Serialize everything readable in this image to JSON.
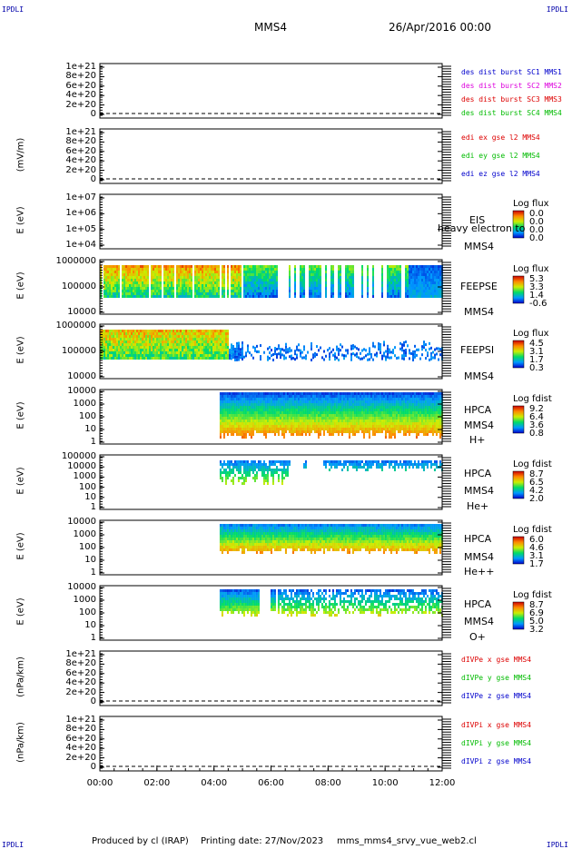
{
  "header": {
    "corner_left_top": "IPDLI",
    "corner_right_top": "IPDLI",
    "corner_left_bottom": "IPDLI",
    "corner_right_bottom": "IPDLI",
    "spacecraft": "MMS4",
    "date": "26/Apr/2016 00:00"
  },
  "footer": {
    "produced_by": "Produced by cl (IRAP)",
    "printing_date": "Printing date: 27/Nov/2023",
    "filename": "mms_mms4_srvy_vue_web2.cl"
  },
  "x_axis": {
    "ticks": [
      "00:00",
      "02:00",
      "04:00",
      "06:00",
      "08:00",
      "10:00",
      "12:00"
    ],
    "range_hours": [
      0,
      12
    ]
  },
  "colors": {
    "blue": "#0000cc",
    "magenta": "#dd00dd",
    "red": "#dd0000",
    "green": "#00bb00"
  },
  "panels": [
    {
      "id": "dist",
      "ylabel": "",
      "yticks": [
        "1e+21",
        "8e+20",
        "6e+20",
        "4e+20",
        "2e+20",
        "0"
      ],
      "legend": [
        {
          "text": "des dist burst SC1 MMS1",
          "color": "#0000cc"
        },
        {
          "text": "des dist burst SC2 MMS2",
          "color": "#dd00dd"
        },
        {
          "text": "des dist burst SC3 MMS3",
          "color": "#dd0000"
        },
        {
          "text": "des dist burst SC4 MMS4",
          "color": "#00bb00"
        }
      ]
    },
    {
      "id": "edi",
      "ylabel": "(mV/m)",
      "yticks": [
        "1e+21",
        "8e+20",
        "6e+20",
        "4e+20",
        "2e+20",
        "0"
      ],
      "legend": [
        {
          "text": "edi ex gse l2 MMS4",
          "color": "#dd0000"
        },
        {
          "text": "edi ey gse l2 MMS4",
          "color": "#00bb00"
        },
        {
          "text": "edi ez gse l2 MMS4",
          "color": "#0000cc"
        }
      ]
    },
    {
      "id": "eis",
      "ylabel": "E (eV)",
      "yticks": [
        "1e+07",
        "1e+06",
        "1e+05",
        "1e+04"
      ],
      "labels": [
        "EIS",
        "heavy electron to",
        "MMS4"
      ],
      "cb_title": "Log flux",
      "cb_values": [
        "0.0",
        "0.0",
        "0.0",
        "0.0"
      ]
    },
    {
      "id": "feepse",
      "ylabel": "E (eV)",
      "yticks": [
        "1000000",
        "100000",
        "10000"
      ],
      "labels": [
        "FEEPSE",
        "MMS4"
      ],
      "cb_title": "Log flux",
      "cb_values": [
        "5.3",
        "3.3",
        "1.4",
        "-0.6"
      ]
    },
    {
      "id": "feepsi",
      "ylabel": "E (eV)",
      "yticks": [
        "1000000",
        "100000",
        "10000"
      ],
      "labels": [
        "FEEPSI",
        "MMS4"
      ],
      "cb_title": "Log flux",
      "cb_values": [
        "4.5",
        "3.1",
        "1.7",
        "0.3"
      ]
    },
    {
      "id": "hpca_h",
      "ylabel": "E (eV)",
      "yticks": [
        "10000",
        "1000",
        "100",
        "10",
        "1"
      ],
      "labels": [
        "HPCA",
        "MMS4",
        "H+"
      ],
      "cb_title": "Log fdist",
      "cb_values": [
        "9.2",
        "6.4",
        "3.6",
        "0.8"
      ]
    },
    {
      "id": "hpca_he",
      "ylabel": "E (eV)",
      "yticks": [
        "100000",
        "10000",
        "1000",
        "100",
        "10",
        "1"
      ],
      "labels": [
        "HPCA",
        "MMS4",
        "He+"
      ],
      "cb_title": "Log fdist",
      "cb_values": [
        "8.7",
        "6.5",
        "4.2",
        "2.0"
      ]
    },
    {
      "id": "hpca_hepp",
      "ylabel": "E (eV)",
      "yticks": [
        "10000",
        "1000",
        "100",
        "10",
        "1"
      ],
      "labels": [
        "HPCA",
        "MMS4",
        "He++"
      ],
      "cb_title": "Log fdist",
      "cb_values": [
        "6.0",
        "4.6",
        "3.1",
        "1.7"
      ]
    },
    {
      "id": "hpca_o",
      "ylabel": "E (eV)",
      "yticks": [
        "10000",
        "1000",
        "100",
        "10",
        "1"
      ],
      "labels": [
        "HPCA",
        "MMS4",
        "O+"
      ],
      "cb_title": "Log fdist",
      "cb_values": [
        "8.7",
        "6.9",
        "5.0",
        "3.2"
      ]
    },
    {
      "id": "divpe",
      "ylabel": "(nPa/km)",
      "yticks": [
        "1e+21",
        "8e+20",
        "6e+20",
        "4e+20",
        "2e+20",
        "0"
      ],
      "legend": [
        {
          "text": "dIVPe x gse MMS4",
          "color": "#dd0000"
        },
        {
          "text": "dIVPe y gse MMS4",
          "color": "#00bb00"
        },
        {
          "text": "dIVPe z gse MMS4",
          "color": "#0000cc"
        }
      ]
    },
    {
      "id": "divpi",
      "ylabel": "(nPa/km)",
      "yticks": [
        "1e+21",
        "8e+20",
        "6e+20",
        "4e+20",
        "2e+20",
        "0"
      ],
      "legend": [
        {
          "text": "dIVPi x gse MMS4",
          "color": "#dd0000"
        },
        {
          "text": "dIVPi y gse MMS4",
          "color": "#00bb00"
        },
        {
          "text": "dIVPi z gse MMS4",
          "color": "#0000cc"
        }
      ]
    }
  ],
  "chart_data": {
    "type": "heatmap",
    "x_units": "hours since 26/Apr/2016 00:00",
    "note_series": [
      {
        "panel": "feepse",
        "coverage_hours": [
          0,
          12
        ]
      },
      {
        "panel": "feepsi",
        "coverage_hours": [
          0,
          12
        ]
      },
      {
        "panel": "hpca_h",
        "coverage_hours": [
          4.2,
          12
        ]
      },
      {
        "panel": "hpca_he",
        "coverage_hours": [
          4.2,
          12
        ]
      },
      {
        "panel": "hpca_hepp",
        "coverage_hours": [
          4.2,
          12
        ]
      },
      {
        "panel": "hpca_o",
        "coverage_hours": [
          4.2,
          12
        ]
      }
    ]
  }
}
